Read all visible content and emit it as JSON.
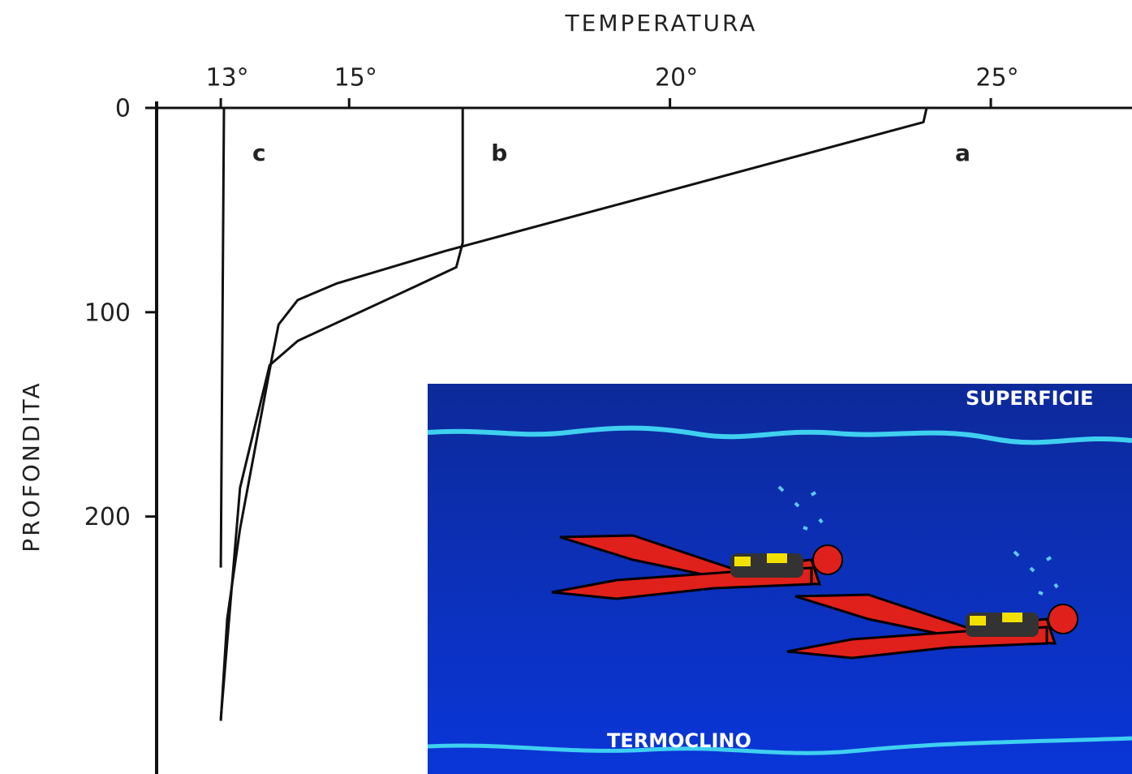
{
  "chart_data": {
    "type": "line",
    "x_label": "TEMPERATURA",
    "y_label": "PROFONDITA",
    "xlim": [
      12,
      27.2
    ],
    "ylim": [
      0,
      326
    ],
    "xticks": [
      {
        "value": 13,
        "label": "13°"
      },
      {
        "value": 15,
        "label": "15°"
      },
      {
        "value": 20,
        "label": "20°"
      },
      {
        "value": 25,
        "label": "25°"
      }
    ],
    "yticks": [
      0,
      100,
      200
    ],
    "y_inverted": true,
    "series": [
      {
        "name": "a",
        "color": "#111111",
        "x": [
          24.0,
          23.95,
          16.5,
          14.8,
          14.2,
          13.9,
          13.8,
          13.3,
          13.1,
          13.0
        ],
        "y": [
          0,
          7,
          70,
          86,
          94,
          106,
          122,
          206,
          250,
          300
        ]
      },
      {
        "name": "b",
        "color": "#111111",
        "x": [
          16.77,
          16.77,
          16.67,
          15.85,
          14.2,
          13.76,
          13.3,
          13.0
        ],
        "y": [
          0,
          66,
          78,
          90,
          114,
          126,
          186,
          299
        ]
      },
      {
        "name": "c",
        "color": "#111111",
        "x": [
          13.05,
          13.0
        ],
        "y": [
          0,
          225
        ]
      }
    ]
  },
  "inset": {
    "top_label": "SUPERFICIE",
    "bottom_label": "TERMOCLINO"
  }
}
